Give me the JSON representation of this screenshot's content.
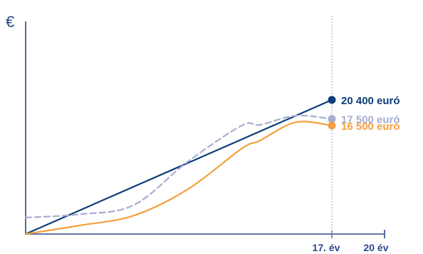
{
  "chart_data": {
    "type": "line",
    "ylabel": "€",
    "x_ticks": [
      "17. év",
      "20 év"
    ],
    "x": [
      0,
      3,
      6,
      9,
      12,
      13,
      15,
      17
    ],
    "ylim": [
      0,
      25000
    ],
    "series": [
      {
        "color": "#0d3d7a",
        "dash": false,
        "values": [
          0,
          3000,
          6000,
          9000,
          12000,
          13200,
          17000,
          20400
        ],
        "end_label": "20 400 euró"
      },
      {
        "color": "#a7aed0",
        "dash": true,
        "values": [
          2500,
          3000,
          4400,
          11000,
          16500,
          16600,
          18000,
          17500
        ],
        "end_label": "17 500 euró"
      },
      {
        "color": "#f4a040",
        "dash": false,
        "values": [
          0,
          1300,
          2800,
          6800,
          13000,
          14200,
          17000,
          16500
        ],
        "end_label": "16 500 euró"
      }
    ],
    "marker_line_x": 17,
    "grid": false,
    "legend": "none"
  }
}
